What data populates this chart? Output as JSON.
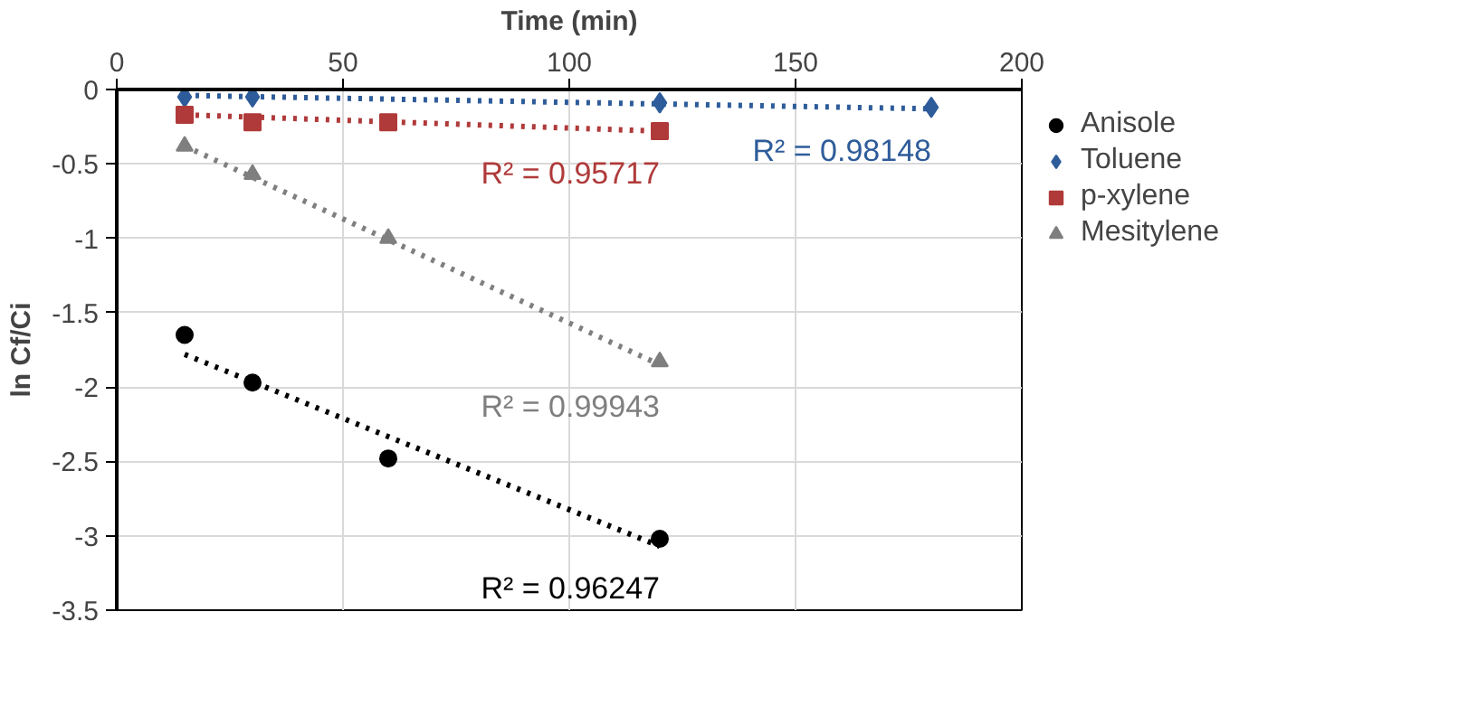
{
  "chart_data": {
    "type": "scatter",
    "xlabel": "Time (min)",
    "ylabel": "ln Cf/Ci",
    "xlim": [
      0,
      200
    ],
    "xticks": [
      0,
      50,
      100,
      150,
      200
    ],
    "ylim": [
      -3.5,
      0
    ],
    "yticks": [
      -3.5,
      -3,
      -2.5,
      -2,
      -1.5,
      -1,
      -0.5,
      0
    ],
    "grid": true,
    "legend": "top right",
    "series": [
      {
        "name": "Anisole",
        "color": "#000000",
        "marker": "circle",
        "x": [
          15,
          30,
          60,
          120
        ],
        "values": [
          -1.65,
          -1.97,
          -2.48,
          -3.02
        ]
      },
      {
        "name": "Toluene",
        "color": "#2e5c9a",
        "marker": "diamond",
        "x": [
          15,
          30,
          120,
          180
        ],
        "values": [
          -0.05,
          -0.05,
          -0.09,
          -0.12
        ]
      },
      {
        "name": "p-xylene",
        "color": "#b03a3a",
        "marker": "square",
        "x": [
          15,
          30,
          60,
          120
        ],
        "values": [
          -0.17,
          -0.22,
          -0.22,
          -0.28
        ]
      },
      {
        "name": "Mesitylene",
        "color": "#7f7f7f",
        "marker": "triangle",
        "x": [
          15,
          30,
          60,
          120
        ],
        "values": [
          -0.38,
          -0.57,
          -1.0,
          -1.83
        ]
      },
      {
        "type": "line",
        "line_style": "dotted",
        "color": "#000000",
        "x": [
          15,
          120
        ],
        "values": [
          -1.78,
          -3.07
        ]
      },
      {
        "type": "line",
        "line_style": "dotted",
        "color": "#2e5c9a",
        "x": [
          15,
          180
        ],
        "values": [
          -0.04,
          -0.13
        ]
      },
      {
        "type": "line",
        "line_style": "dotted",
        "color": "#b03a3a",
        "x": [
          15,
          120
        ],
        "values": [
          -0.17,
          -0.28
        ]
      },
      {
        "type": "line",
        "line_style": "dotted",
        "color": "#7f7f7f",
        "x": [
          15,
          120
        ],
        "values": [
          -0.38,
          -1.85
        ]
      }
    ],
    "annotations": [
      "R² = 0.96247",
      "R² = 0.98148",
      "R² = 0.95717",
      "R² = 0.99943"
    ]
  }
}
